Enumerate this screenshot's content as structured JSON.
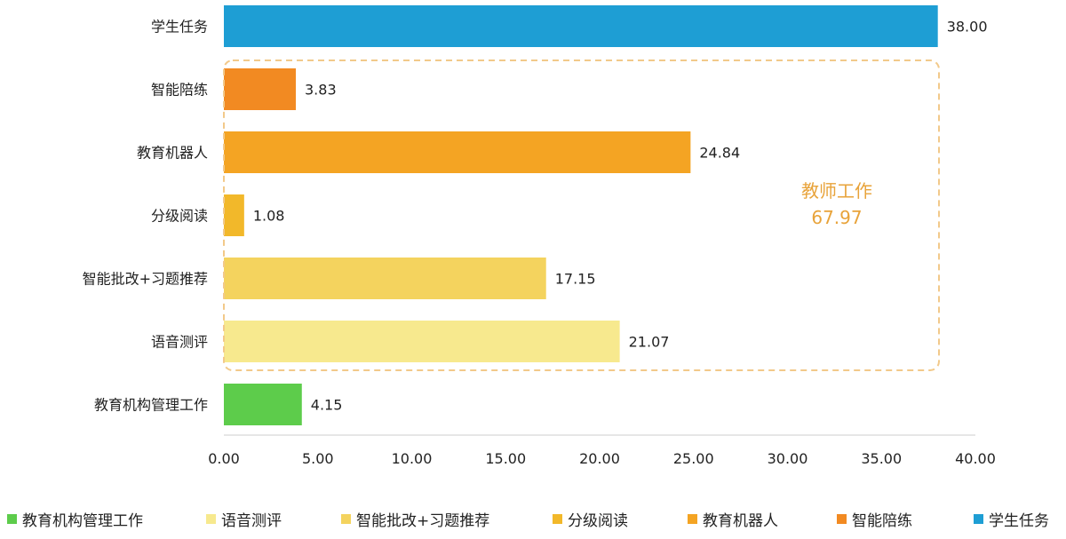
{
  "chart_data": {
    "type": "bar",
    "orientation": "horizontal",
    "categories": [
      "学生任务",
      "智能陪练",
      "教育机器人",
      "分级阅读",
      "智能批改+习题推荐",
      "语音测评",
      "教育机构管理工作"
    ],
    "values": [
      38.0,
      3.83,
      24.84,
      1.08,
      17.15,
      21.07,
      4.15
    ],
    "value_labels": [
      "38.00",
      "3.83",
      "24.84",
      "1.08",
      "17.15",
      "21.07",
      "4.15"
    ],
    "colors": [
      "#1E9ED4",
      "#F28A22",
      "#F4A423",
      "#F2B82A",
      "#F4D35E",
      "#F7E98E",
      "#5DCC4B"
    ],
    "xlim": [
      0,
      40
    ],
    "x_ticks": [
      "0.00",
      "5.00",
      "10.00",
      "15.00",
      "20.00",
      "25.00",
      "30.00",
      "35.00",
      "40.00"
    ],
    "grid": false,
    "legend_position": "bottom",
    "annotation": {
      "text": "教师工作",
      "value": "67.97",
      "color": "#E8A33A"
    }
  },
  "legend": {
    "items": [
      {
        "label": "教育机构管理工作",
        "color": "#5DCC4B"
      },
      {
        "label": "语音测评",
        "color": "#F7E98E"
      },
      {
        "label": "智能批改+习题推荐",
        "color": "#F4D35E"
      },
      {
        "label": "分级阅读",
        "color": "#F2B82A"
      },
      {
        "label": "教育机器人",
        "color": "#F4A423"
      },
      {
        "label": "智能陪练",
        "color": "#F28A22"
      },
      {
        "label": "学生任务",
        "color": "#1E9ED4"
      }
    ]
  }
}
